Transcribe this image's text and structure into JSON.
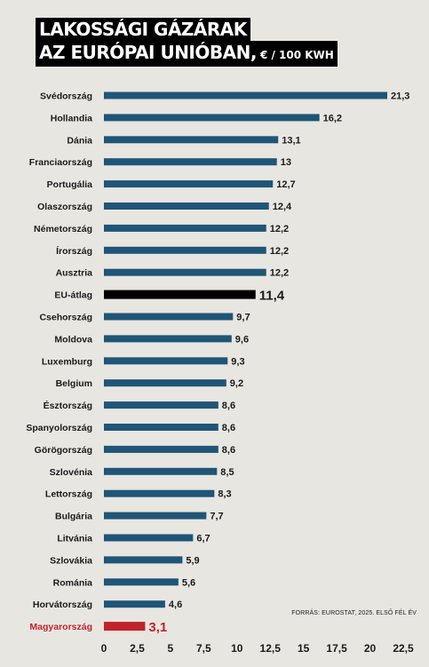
{
  "title": {
    "line1": "Lakossági gázárak",
    "line2": "az Európai Unióban,",
    "unit": "€ / 100 kWh"
  },
  "source": "FORRÁS: EUROSTAT, 2025. ELSŐ FÉL ÉV",
  "colors": {
    "default_bar": "#1f5577",
    "eu_bar": "#000000",
    "hungary_bar": "#c0232c",
    "background": "#e8e6e1"
  },
  "chart_data": {
    "type": "bar",
    "orientation": "horizontal",
    "categories": [
      "Svédország",
      "Hollandia",
      "Dánia",
      "Franciaország",
      "Portugália",
      "Olaszország",
      "Németország",
      "Írország",
      "Ausztria",
      "EU-átlag",
      "Csehország",
      "Moldova",
      "Luxemburg",
      "Belgium",
      "Észtország",
      "Spanyolország",
      "Görögország",
      "Szlovénia",
      "Lettország",
      "Bulgária",
      "Litvánia",
      "Szlovákia",
      "Románia",
      "Horvátország",
      "Magyarország"
    ],
    "values": [
      21.3,
      16.2,
      13.1,
      13,
      12.7,
      12.4,
      12.2,
      12.2,
      12.2,
      11.4,
      9.7,
      9.6,
      9.3,
      9.2,
      8.6,
      8.6,
      8.6,
      8.5,
      8.3,
      7.7,
      6.7,
      5.9,
      5.6,
      4.6,
      3.1
    ],
    "value_labels": [
      "21,3",
      "16,2",
      "13,1",
      "13",
      "12,7",
      "12,4",
      "12,2",
      "12,2",
      "12,2",
      "11,4",
      "9,7",
      "9,6",
      "9,3",
      "9,2",
      "8,6",
      "8,6",
      "8,6",
      "8,5",
      "8,3",
      "7,7",
      "6,7",
      "5,9",
      "5,6",
      "4,6",
      "3,1"
    ],
    "highlights": {
      "EU-átlag": "eu",
      "Magyarország": "hungary"
    },
    "xlim": [
      0,
      22.5
    ],
    "xticks": [
      "0",
      "2,5",
      "5",
      "7,5",
      "10",
      "12,5",
      "15",
      "17,5",
      "20",
      "22,5"
    ],
    "xtick_values": [
      0,
      2.5,
      5,
      7.5,
      10,
      12.5,
      15,
      17.5,
      20,
      22.5
    ],
    "grid": false,
    "legend": "none"
  }
}
